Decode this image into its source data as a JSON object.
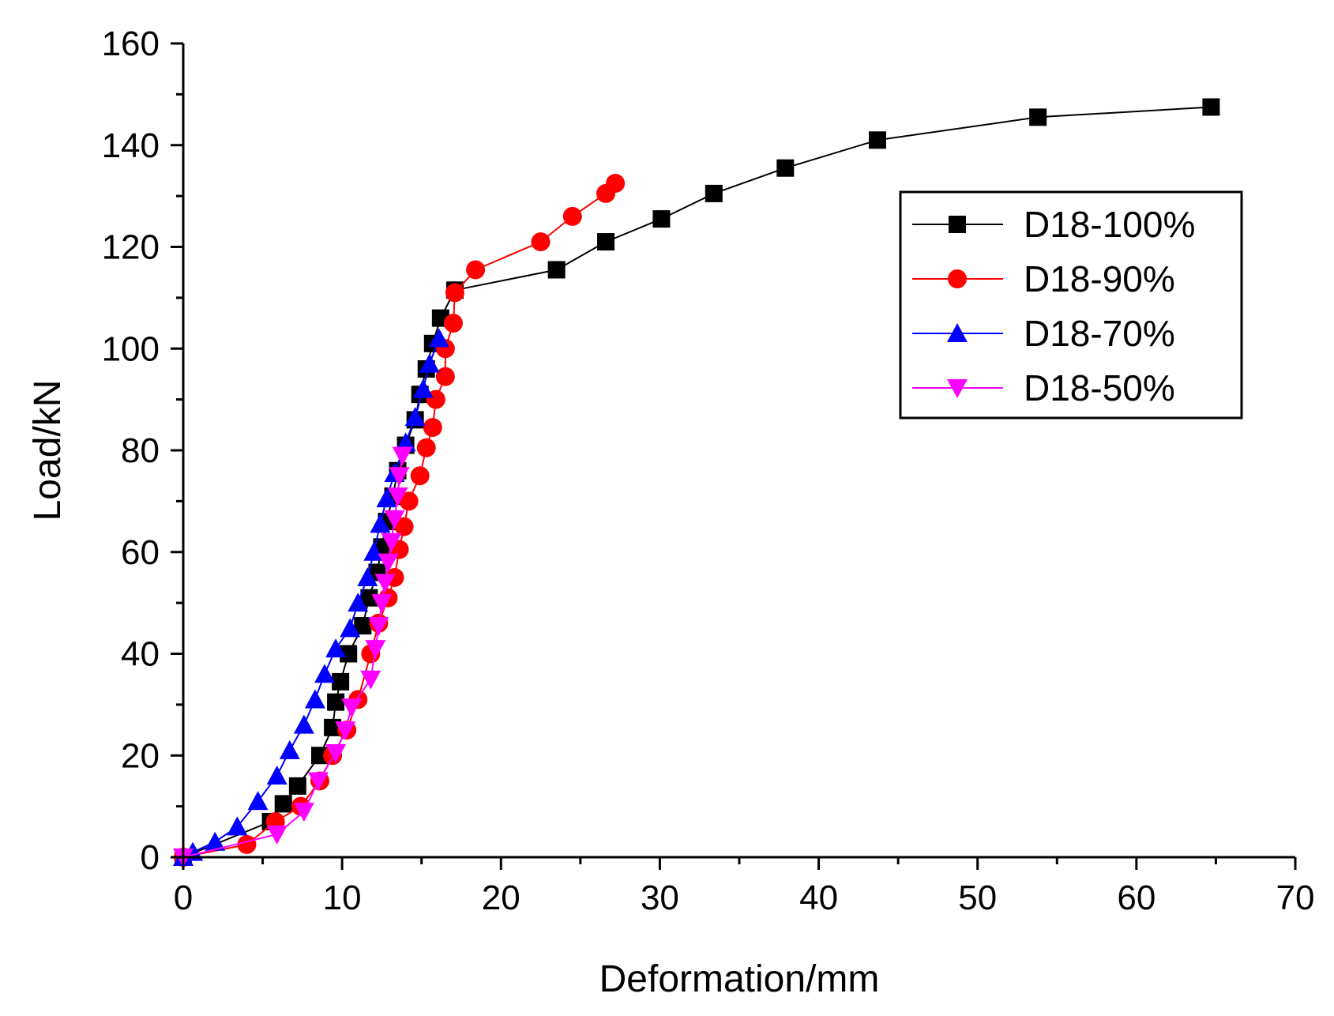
{
  "chart_data": {
    "type": "line",
    "title": "",
    "xlabel": "Deformation/mm",
    "ylabel": "Load/kN",
    "xlim": [
      0,
      70
    ],
    "ylim": [
      0,
      160
    ],
    "xticks": [
      "0",
      "10",
      "20",
      "30",
      "40",
      "50",
      "60",
      "70"
    ],
    "yticks": [
      "0",
      "20",
      "40",
      "60",
      "80",
      "100",
      "120",
      "140",
      "160"
    ],
    "legend_position": "upper-right",
    "series": [
      {
        "name": "D18-100%",
        "color": "#000000",
        "marker": "square",
        "points": [
          [
            0,
            0
          ],
          [
            5.5,
            7
          ],
          [
            6.3,
            10.5
          ],
          [
            7.2,
            14
          ],
          [
            8.6,
            20
          ],
          [
            9.4,
            25.5
          ],
          [
            9.6,
            30.5
          ],
          [
            9.9,
            34.5
          ],
          [
            10.4,
            40
          ],
          [
            11.3,
            45.5
          ],
          [
            11.7,
            51
          ],
          [
            12.2,
            56
          ],
          [
            12.5,
            61
          ],
          [
            12.8,
            66
          ],
          [
            13.2,
            71
          ],
          [
            13.5,
            76
          ],
          [
            14.0,
            81
          ],
          [
            14.6,
            86
          ],
          [
            14.9,
            91
          ],
          [
            15.3,
            96
          ],
          [
            15.7,
            101
          ],
          [
            16.2,
            106
          ],
          [
            17.1,
            111.5
          ],
          [
            23.5,
            115.5
          ],
          [
            26.6,
            121
          ],
          [
            30.1,
            125.5
          ],
          [
            33.4,
            130.5
          ],
          [
            37.9,
            135.5
          ],
          [
            43.7,
            141
          ],
          [
            53.8,
            145.5
          ],
          [
            64.7,
            147.5
          ]
        ]
      },
      {
        "name": "D18-90%",
        "color": "#ff0000",
        "marker": "circle",
        "points": [
          [
            0,
            0
          ],
          [
            4.0,
            2.5
          ],
          [
            5.8,
            7
          ],
          [
            7.4,
            10
          ],
          [
            8.6,
            15
          ],
          [
            9.4,
            20
          ],
          [
            10.3,
            25
          ],
          [
            11.0,
            31
          ],
          [
            11.8,
            40
          ],
          [
            12.3,
            46
          ],
          [
            12.9,
            51
          ],
          [
            13.3,
            55
          ],
          [
            13.6,
            60.5
          ],
          [
            13.9,
            65
          ],
          [
            14.2,
            70
          ],
          [
            14.9,
            75
          ],
          [
            15.3,
            80.5
          ],
          [
            15.7,
            84.5
          ],
          [
            15.9,
            90
          ],
          [
            16.5,
            94.5
          ],
          [
            16.5,
            100
          ],
          [
            17.0,
            105
          ],
          [
            17.1,
            111
          ],
          [
            18.4,
            115.5
          ],
          [
            22.5,
            121
          ],
          [
            24.5,
            126
          ],
          [
            26.6,
            130.5
          ],
          [
            27.2,
            132.5
          ]
        ]
      },
      {
        "name": "D18-70%",
        "color": "#0000ff",
        "marker": "triangle-up",
        "points": [
          [
            0,
            0
          ],
          [
            0.6,
            1
          ],
          [
            2.0,
            3
          ],
          [
            3.4,
            6
          ],
          [
            4.7,
            11
          ],
          [
            5.9,
            16
          ],
          [
            6.7,
            21
          ],
          [
            7.6,
            26
          ],
          [
            8.3,
            31
          ],
          [
            8.9,
            36
          ],
          [
            9.6,
            41
          ],
          [
            10.5,
            45
          ],
          [
            11.0,
            50
          ],
          [
            11.6,
            55
          ],
          [
            12.0,
            60
          ],
          [
            12.4,
            65.5
          ],
          [
            12.8,
            70.5
          ],
          [
            13.3,
            75.5
          ],
          [
            14.0,
            81.5
          ],
          [
            14.6,
            86.5
          ],
          [
            15.1,
            92
          ],
          [
            15.5,
            97
          ],
          [
            16.1,
            102
          ]
        ]
      },
      {
        "name": "D18-50%",
        "color": "#ff00ff",
        "marker": "triangle-down",
        "points": [
          [
            0,
            0
          ],
          [
            5.9,
            4.5
          ],
          [
            7.6,
            9
          ],
          [
            8.5,
            15
          ],
          [
            9.6,
            20.5
          ],
          [
            10.2,
            25
          ],
          [
            10.6,
            29.5
          ],
          [
            11.8,
            35
          ],
          [
            12.1,
            41
          ],
          [
            12.3,
            45.5
          ],
          [
            12.5,
            50
          ],
          [
            12.7,
            54
          ],
          [
            12.9,
            58
          ],
          [
            13.1,
            62
          ],
          [
            13.3,
            66.5
          ],
          [
            13.5,
            71
          ],
          [
            13.6,
            75
          ],
          [
            13.8,
            79
          ]
        ]
      }
    ]
  }
}
